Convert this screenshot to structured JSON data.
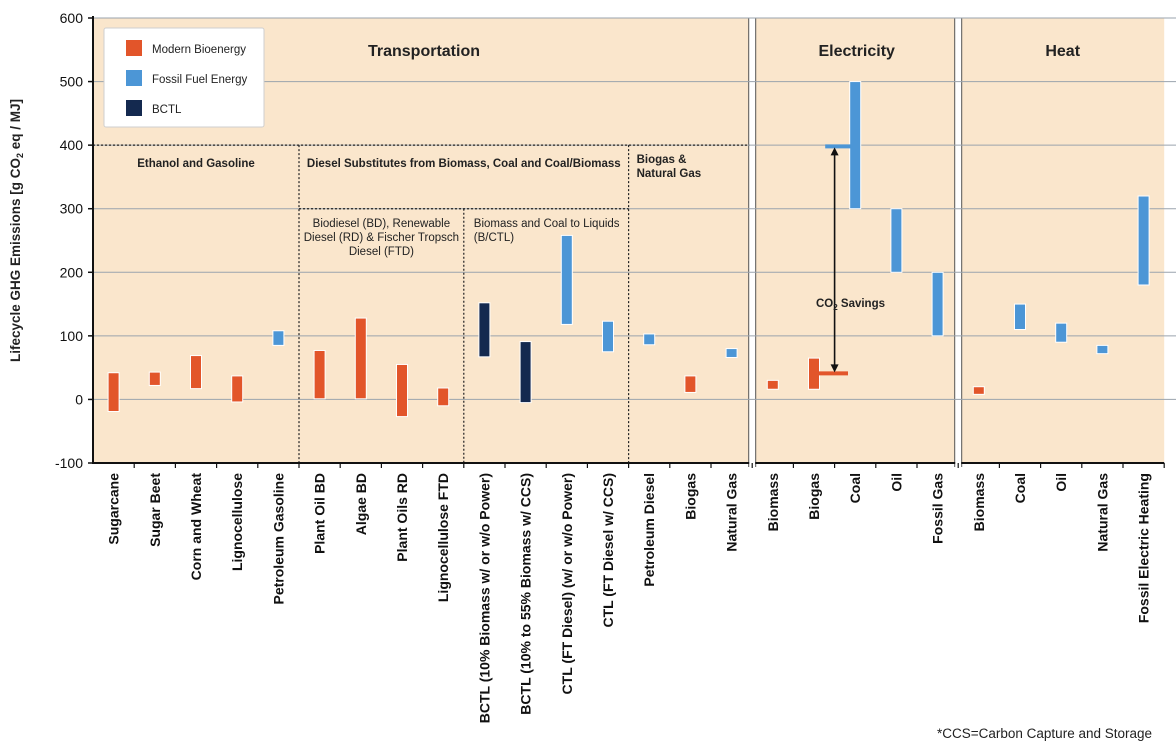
{
  "chart_data": {
    "type": "floating-bar",
    "ylabel": "Lifecycle GHG Emissions [g CO2 eq / MJ]",
    "ylabel_parts": {
      "pre": "Lifecycle GHG Emissions [g CO",
      "sub": "2",
      "post": " eq / MJ]"
    },
    "ylim": [
      -100,
      600
    ],
    "yticks": [
      -100,
      0,
      100,
      200,
      300,
      400,
      500,
      600
    ],
    "grid": true,
    "legend_position": "top-left",
    "legend": [
      {
        "key": "bio",
        "label": "Modern Bioenergy",
        "color": "#e2552a"
      },
      {
        "key": "fossil",
        "label": "Fossil Fuel Energy",
        "color": "#4c96d6"
      },
      {
        "key": "bctl",
        "label": "BCTL",
        "color": "#14294f"
      }
    ],
    "panels": [
      {
        "title": "Transportation",
        "start": 0,
        "end": 16
      },
      {
        "title": "Electricity",
        "start": 16,
        "end": 21
      },
      {
        "title": "Heat",
        "start": 21,
        "end": 26
      }
    ],
    "groups": [
      {
        "text": "Ethanol and Gasoline",
        "start": 0,
        "end": 5
      },
      {
        "text": "Diesel Substitutes from Biomass, Coal and Coal/Biomass",
        "start": 5,
        "end": 13
      },
      {
        "text": "Biogas & Natural Gas",
        "lines": [
          "Biogas &",
          "Natural Gas"
        ],
        "start": 13,
        "end": 15
      }
    ],
    "subgroups": [
      {
        "text": "Biodiesel (BD), Renewable Diesel (RD) & Fischer Tropsch Diesel (FTD)",
        "lines": [
          "Biodiesel (BD), Renewable",
          "Diesel (RD) & Fischer Tropsch",
          "Diesel (FTD)"
        ],
        "start": 5,
        "end": 9
      },
      {
        "text": "Biomass and Coal to Liquids (B/CTL)",
        "lines": [
          "Biomass and Coal to Liquids",
          "(B/CTL)"
        ],
        "start": 9,
        "end": 13
      }
    ],
    "bars": [
      {
        "category": "Sugarcane",
        "type": "bio",
        "low": -19,
        "high": 42
      },
      {
        "category": "Sugar Beet",
        "type": "bio",
        "low": 22,
        "high": 43
      },
      {
        "category": "Corn and Wheat",
        "type": "bio",
        "low": 17,
        "high": 69
      },
      {
        "category": "Lignocellulose",
        "type": "bio",
        "low": -4,
        "high": 37
      },
      {
        "category": "Petroleum Gasoline",
        "type": "fossil",
        "low": 85,
        "high": 108
      },
      {
        "category": "Plant Oil BD",
        "type": "bio",
        "low": 1,
        "high": 77
      },
      {
        "category": "Algae BD",
        "type": "bio",
        "low": 1,
        "high": 128
      },
      {
        "category": "Plant Oils RD",
        "type": "bio",
        "low": -27,
        "high": 55
      },
      {
        "category": "Lignocellulose FTD",
        "type": "bio",
        "low": -10,
        "high": 18
      },
      {
        "category": "BCTL (10% Biomass w/ or w/o Power)",
        "type": "bctl",
        "low": 67,
        "high": 152
      },
      {
        "category": "BCTL (10% to 55% Biomass w/ CCS)",
        "type": "bctl",
        "low": -5,
        "high": 91
      },
      {
        "category": "CTL (FT Diesel) (w/ or w/o Power)",
        "type": "fossil",
        "low": 118,
        "high": 258
      },
      {
        "category": "CTL (FT Diesel w/ CCS)",
        "type": "fossil",
        "low": 75,
        "high": 123
      },
      {
        "category": "Petroleum Diesel",
        "type": "fossil",
        "low": 86,
        "high": 103
      },
      {
        "category": "Biogas",
        "type": "bio",
        "low": 11,
        "high": 37
      },
      {
        "category": "Natural Gas",
        "type": "fossil",
        "low": 66,
        "high": 80
      },
      {
        "category": "Biomass",
        "type": "bio",
        "low": 16,
        "high": 30
      },
      {
        "category": "Biogas",
        "type": "bio",
        "low": 16,
        "high": 65
      },
      {
        "category": "Coal",
        "type": "fossil",
        "low": 300,
        "high": 500
      },
      {
        "category": "Oil",
        "type": "fossil",
        "low": 200,
        "high": 300
      },
      {
        "category": "Fossil Gas",
        "type": "fossil",
        "low": 100,
        "high": 200
      },
      {
        "category": "Biomass",
        "type": "bio",
        "low": 8,
        "high": 20
      },
      {
        "category": "Coal",
        "type": "fossil",
        "low": 110,
        "high": 150
      },
      {
        "category": "Oil",
        "type": "fossil",
        "low": 90,
        "high": 120
      },
      {
        "category": "Natural Gas",
        "type": "fossil",
        "low": 72,
        "high": 85
      },
      {
        "category": "Fossil Electric Heating",
        "type": "fossil",
        "low": 180,
        "high": 320
      }
    ],
    "savings": {
      "label": "CO2 Savings",
      "label_parts": {
        "pre": "CO",
        "sub": "2",
        "post": " Savings"
      },
      "from": 41,
      "to": 398,
      "category_index": 17
    }
  },
  "footnote": "*CCS=Carbon Capture and Storage"
}
